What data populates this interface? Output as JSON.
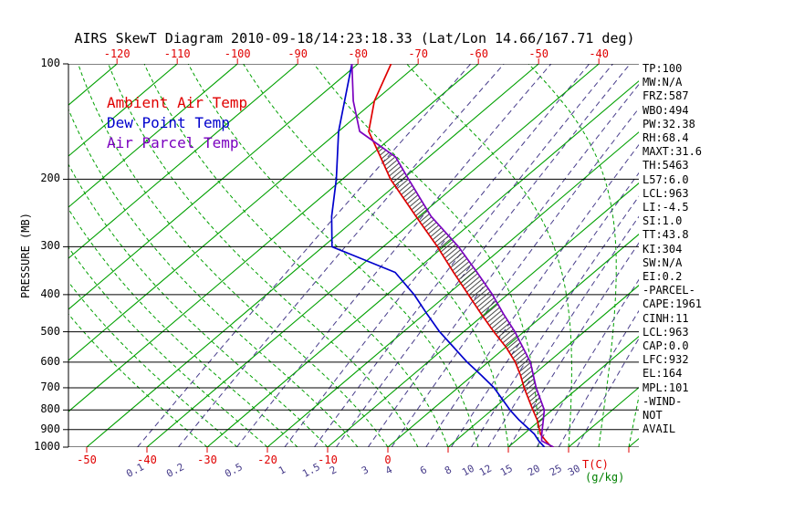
{
  "title": "AIRS SkewT Diagram 2010-09-18/14:23:18.33 (Lat/Lon 14.66/167.71 deg)",
  "legend": {
    "ambient": "Ambient Air Temp",
    "dewpoint": "Dew Point Temp",
    "parcel": "Air Parcel Temp"
  },
  "y_axis_label": "PRESSURE (MB)",
  "x_axis_unit": "T(C)",
  "mixing_unit": "(g/kg)",
  "colors": {
    "isotherm": "#00a000",
    "moist_adiabat": "#00a000",
    "mixing_ratio": "#483d8b",
    "pressure_line": "#000000",
    "ambient": "#e00000",
    "dewpoint": "#0000cc",
    "parcel": "#7a00bf",
    "hatch": "#333333",
    "axis_text": "#000000",
    "temp_label": "#e00000",
    "gkg_label": "#008000"
  },
  "stats": [
    "TP:100",
    "MW:N/A",
    "FRZ:587",
    "WBO:494",
    "PW:32.38",
    "RH:68.4",
    "MAXT:31.6",
    "TH:5463",
    "L57:6.0",
    "LCL:963",
    "LI:-4.5",
    "SI:1.0",
    "TT:43.8",
    "KI:304",
    "SW:N/A",
    "EI:0.2",
    "-PARCEL-",
    "CAPE:1961",
    "CINH:11",
    "LCL:963",
    "CAP:0.0",
    "LFC:932",
    "EL:164",
    "MPL:101",
    "-WIND-",
    "NOT",
    "AVAIL"
  ],
  "chart_data": {
    "type": "line",
    "title": "AIRS SkewT Diagram 2010-09-18/14:23:18.33 (Lat/Lon 14.66/167.71 deg)",
    "y_axis": {
      "label": "PRESSURE (MB)",
      "scale": "log",
      "ticks": [
        100,
        200,
        300,
        400,
        500,
        600,
        700,
        800,
        900,
        1000
      ],
      "range": [
        100,
        1000
      ]
    },
    "x_axis": {
      "label": "T(C)",
      "skewed": true,
      "top_tick_labels_c": [
        -120,
        -110,
        -100,
        -90,
        -80,
        -70,
        -60,
        -50,
        -40
      ],
      "bottom_tick_labels_c": [
        -50,
        -40,
        -30,
        -20,
        -10,
        0
      ]
    },
    "isotherms_c": {
      "min": -120,
      "max": 40,
      "step": 10
    },
    "mixing_ratio_lines_g_per_kg": [
      0.1,
      0.2,
      0.5,
      1,
      1.5,
      2,
      3,
      4,
      6,
      8,
      10,
      12,
      15,
      20,
      25,
      30
    ],
    "mixing_ratio_label_strings": [
      "0.1",
      "0.2",
      "0.5",
      "1",
      "1.5",
      "2",
      "3",
      "4",
      "6",
      "8",
      "10",
      "12",
      "15",
      "20",
      "25",
      "30"
    ],
    "series": [
      {
        "name": "Ambient Air Temp",
        "color": "#e00000",
        "points_p_mb_T_c": [
          [
            1000,
            27.5
          ],
          [
            990,
            26.6
          ],
          [
            963,
            25.0
          ],
          [
            925,
            22.8
          ],
          [
            850,
            19.5
          ],
          [
            800,
            16.8
          ],
          [
            700,
            11.0
          ],
          [
            650,
            8.0
          ],
          [
            600,
            4.5
          ],
          [
            550,
            0.2
          ],
          [
            500,
            -5.0
          ],
          [
            450,
            -10.5
          ],
          [
            400,
            -16.5
          ],
          [
            350,
            -23.3
          ],
          [
            300,
            -31.0
          ],
          [
            250,
            -40.5
          ],
          [
            200,
            -52.0
          ],
          [
            175,
            -58.0
          ],
          [
            150,
            -65.0
          ],
          [
            125,
            -70.0
          ],
          [
            100,
            -74.5
          ]
        ]
      },
      {
        "name": "Dew Point Temp",
        "color": "#0000cc",
        "points_p_mb_T_c": [
          [
            1000,
            26.0
          ],
          [
            963,
            23.8
          ],
          [
            925,
            21.8
          ],
          [
            850,
            16.5
          ],
          [
            800,
            13.0
          ],
          [
            700,
            6.0
          ],
          [
            650,
            1.5
          ],
          [
            600,
            -3.5
          ],
          [
            550,
            -8.5
          ],
          [
            500,
            -14.0
          ],
          [
            450,
            -19.5
          ],
          [
            400,
            -25.5
          ],
          [
            350,
            -33.0
          ],
          [
            300,
            -48.5
          ],
          [
            250,
            -54.5
          ],
          [
            200,
            -61.0
          ],
          [
            150,
            -70.0
          ],
          [
            100,
            -81.0
          ]
        ]
      },
      {
        "name": "Air Parcel Temp",
        "color": "#7a00bf",
        "points_p_mb_T_c": [
          [
            1000,
            27.5
          ],
          [
            963,
            24.3
          ],
          [
            925,
            23.0
          ],
          [
            850,
            20.5
          ],
          [
            800,
            18.7
          ],
          [
            700,
            13.0
          ],
          [
            600,
            7.0
          ],
          [
            500,
            -1.5
          ],
          [
            450,
            -6.8
          ],
          [
            400,
            -12.5
          ],
          [
            350,
            -19.4
          ],
          [
            300,
            -27.5
          ],
          [
            250,
            -38.0
          ],
          [
            200,
            -49.0
          ],
          [
            175,
            -55.5
          ],
          [
            150,
            -66.5
          ],
          [
            125,
            -73.5
          ],
          [
            100,
            -81.0
          ]
        ]
      }
    ],
    "cape_hatch": {
      "between": [
        "Air Parcel Temp",
        "Ambient Air Temp"
      ],
      "pressure_range_mb": [
        930,
        163
      ]
    }
  }
}
